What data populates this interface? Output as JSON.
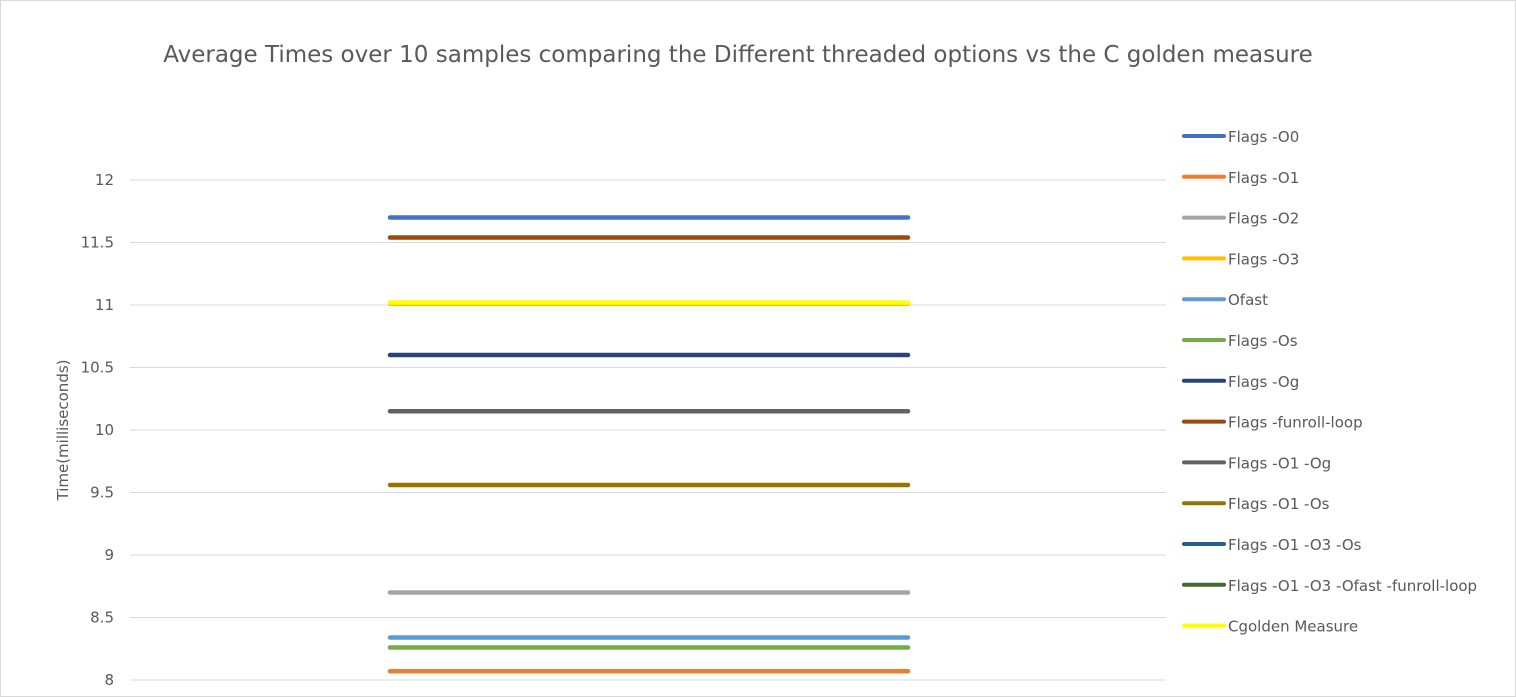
{
  "chart_data": {
    "type": "line",
    "title": "Average Times over 10 samples comparing the Different threaded options vs the C golden measure",
    "ylabel": "Time(milliseconds)",
    "xlabel": "",
    "ylim": [
      8,
      12
    ],
    "yticks": [
      8,
      8.5,
      9,
      9.5,
      10,
      10.5,
      11,
      11.5,
      12
    ],
    "grid": true,
    "legend_position": "right",
    "series": [
      {
        "name": "Flags -O0",
        "color": "#4472C4",
        "value": 11.7
      },
      {
        "name": "Flags -O1",
        "color": "#ED7D31",
        "value": 8.07
      },
      {
        "name": "Flags -O2",
        "color": "#A5A5A5",
        "value": 8.7
      },
      {
        "name": "Flags -O3",
        "color": "#FFC000",
        "value": 11.01
      },
      {
        "name": "Ofast",
        "color": "#5B9BD5",
        "value": 8.34
      },
      {
        "name": "Flags -Os",
        "color": "#70AD47",
        "value": 8.26
      },
      {
        "name": "Flags -Og",
        "color": "#264478",
        "value": 10.6
      },
      {
        "name": "Flags -funroll-loop",
        "color": "#9E480E",
        "value": 11.54
      },
      {
        "name": "Flags -O1 -Og",
        "color": "#636363",
        "value": 10.15
      },
      {
        "name": "Flags -O1 -Os",
        "color": "#997300",
        "value": 9.56
      },
      {
        "name": "Flags -O1 -O3 -Os",
        "color": "#255E91",
        "value": null
      },
      {
        "name": "Flags -O1 -O3 -Ofast -funroll-loop",
        "color": "#43682B",
        "value": null
      },
      {
        "name": "Cgolden Measure",
        "color": "#FFFF00",
        "value": 11.02
      }
    ]
  }
}
